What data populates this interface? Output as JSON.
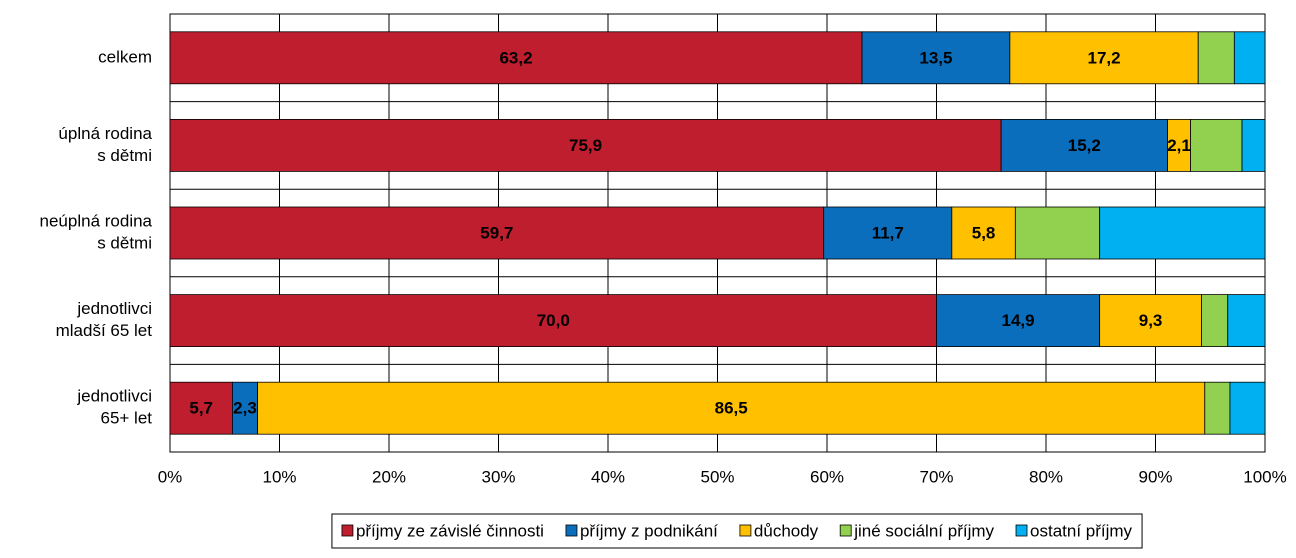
{
  "chart_data": {
    "type": "stacked-bar-horizontal",
    "categories": [
      [
        "celkem"
      ],
      [
        "úplná rodina",
        "s dětmi"
      ],
      [
        "neúplná rodina",
        "s dětmi"
      ],
      [
        "jednotlivci",
        "mladší 65 let"
      ],
      [
        "jednotlivci",
        "65+ let"
      ]
    ],
    "series": [
      {
        "name": "příjmy ze závislé činnosti",
        "color": "#be1e2d",
        "values": [
          63.2,
          75.9,
          59.7,
          70.0,
          5.7
        ],
        "value_labels": [
          "63,2",
          "75,9",
          "59,7",
          "70,0",
          "5,7"
        ]
      },
      {
        "name": "příjmy z podnikání",
        "color": "#0a6ebd",
        "values": [
          13.5,
          15.2,
          11.7,
          14.9,
          2.3
        ],
        "value_labels": [
          "13,5",
          "15,2",
          "11,7",
          "14,9",
          "2,3"
        ]
      },
      {
        "name": "důchody",
        "color": "#ffc000",
        "values": [
          17.2,
          2.1,
          5.8,
          9.3,
          86.5
        ],
        "value_labels": [
          "17,2",
          "2,1",
          "5,8",
          "9,3",
          "86,5"
        ]
      },
      {
        "name": "jiné sociální příjmy",
        "color": "#92d050",
        "values": [
          3.3,
          4.7,
          7.7,
          2.4,
          2.3
        ],
        "value_labels": [
          null,
          null,
          null,
          null,
          null
        ]
      },
      {
        "name": "ostatní příjmy",
        "color": "#00b0f0",
        "values": [
          2.8,
          2.1,
          15.1,
          3.4,
          3.2
        ],
        "value_labels": [
          null,
          null,
          null,
          null,
          null
        ]
      }
    ],
    "xlim": [
      0,
      100
    ],
    "xticks": [
      {
        "value": 0,
        "label": "0%"
      },
      {
        "value": 10,
        "label": "10%"
      },
      {
        "value": 20,
        "label": "20%"
      },
      {
        "value": 30,
        "label": "30%"
      },
      {
        "value": 40,
        "label": "40%"
      },
      {
        "value": 50,
        "label": "50%"
      },
      {
        "value": 60,
        "label": "60%"
      },
      {
        "value": 70,
        "label": "70%"
      },
      {
        "value": 80,
        "label": "80%"
      },
      {
        "value": 90,
        "label": "90%"
      },
      {
        "value": 100,
        "label": "100%"
      }
    ],
    "grid": true,
    "legend": "bottom"
  }
}
